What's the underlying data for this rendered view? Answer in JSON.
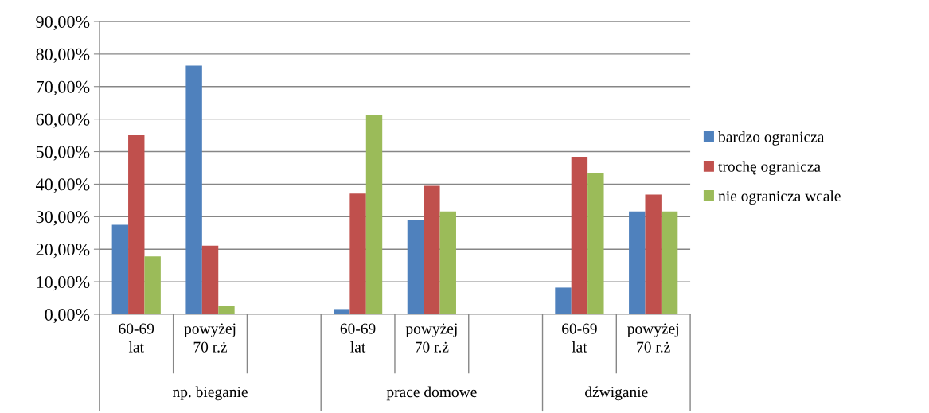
{
  "chart_data": {
    "type": "bar",
    "categories": [
      "60-69\nlat",
      "powyżej\n70 r.ż",
      null,
      "60-69\nlat",
      "powyżej\n70 r.ż",
      null,
      "60-69\nlat",
      "powyżej\n70 r.ż"
    ],
    "series": [
      {
        "name": "bardzo ogranicza",
        "color": "#4f81bd",
        "values": [
          27.5,
          76.4,
          null,
          1.6,
          29.0,
          null,
          8.2,
          31.6
        ]
      },
      {
        "name": "trochę ogranicza",
        "color": "#c0504d",
        "values": [
          55.0,
          21.1,
          null,
          37.1,
          39.5,
          null,
          48.4,
          36.8
        ]
      },
      {
        "name": "nie ogranicza wcale",
        "color": "#9bbb59",
        "values": [
          17.8,
          2.6,
          null,
          61.3,
          31.6,
          null,
          43.5,
          31.6
        ]
      }
    ],
    "annotations": [
      "np. bieganie",
      "prace domowe",
      "dźwiganie"
    ],
    "ylim": [
      0,
      90
    ],
    "yticks": [
      {
        "value": 0,
        "label": "0,00%"
      },
      {
        "value": 10,
        "label": "10,00%"
      },
      {
        "value": 20,
        "label": "20,00%"
      },
      {
        "value": 30,
        "label": "30,00%"
      },
      {
        "value": 40,
        "label": "40,00%"
      },
      {
        "value": 50,
        "label": "50,00%"
      },
      {
        "value": 60,
        "label": "60,00%"
      },
      {
        "value": 70,
        "label": "70,00%"
      },
      {
        "value": 80,
        "label": "80,00%"
      },
      {
        "value": 90,
        "label": "90,00%"
      }
    ],
    "grid": "y",
    "legend": "right"
  }
}
